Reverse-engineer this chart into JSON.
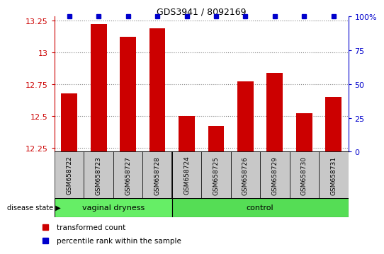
{
  "title": "GDS3941 / 8092169",
  "samples": [
    "GSM658722",
    "GSM658723",
    "GSM658727",
    "GSM658728",
    "GSM658724",
    "GSM658725",
    "GSM658726",
    "GSM658729",
    "GSM658730",
    "GSM658731"
  ],
  "red_values": [
    12.68,
    13.22,
    13.12,
    13.19,
    12.5,
    12.42,
    12.77,
    12.84,
    12.52,
    12.65
  ],
  "blue_values": [
    100,
    100,
    100,
    100,
    100,
    100,
    100,
    100,
    100,
    100
  ],
  "ylim_left": [
    12.22,
    13.28
  ],
  "ylim_right": [
    0,
    100
  ],
  "yticks_left": [
    12.25,
    12.5,
    12.75,
    13.0,
    13.25
  ],
  "ytick_labels_left": [
    "12.25",
    "12.5",
    "12.75",
    "13",
    "13.25"
  ],
  "yticks_right": [
    0,
    25,
    50,
    75,
    100
  ],
  "ytick_labels_right": [
    "0",
    "25",
    "50",
    "75",
    "100%"
  ],
  "group1_label": "vaginal dryness",
  "group2_label": "control",
  "group1_count": 4,
  "group2_count": 6,
  "disease_state_label": "disease state",
  "legend_red": "transformed count",
  "legend_blue": "percentile rank within the sample",
  "bar_color": "#cc0000",
  "blue_color": "#0000cc",
  "group1_color": "#66ee66",
  "group2_color": "#55dd55",
  "dotted_grid_color": "#888888",
  "bar_width": 0.55,
  "blue_marker_size": 5,
  "bg_color": "#ffffff"
}
